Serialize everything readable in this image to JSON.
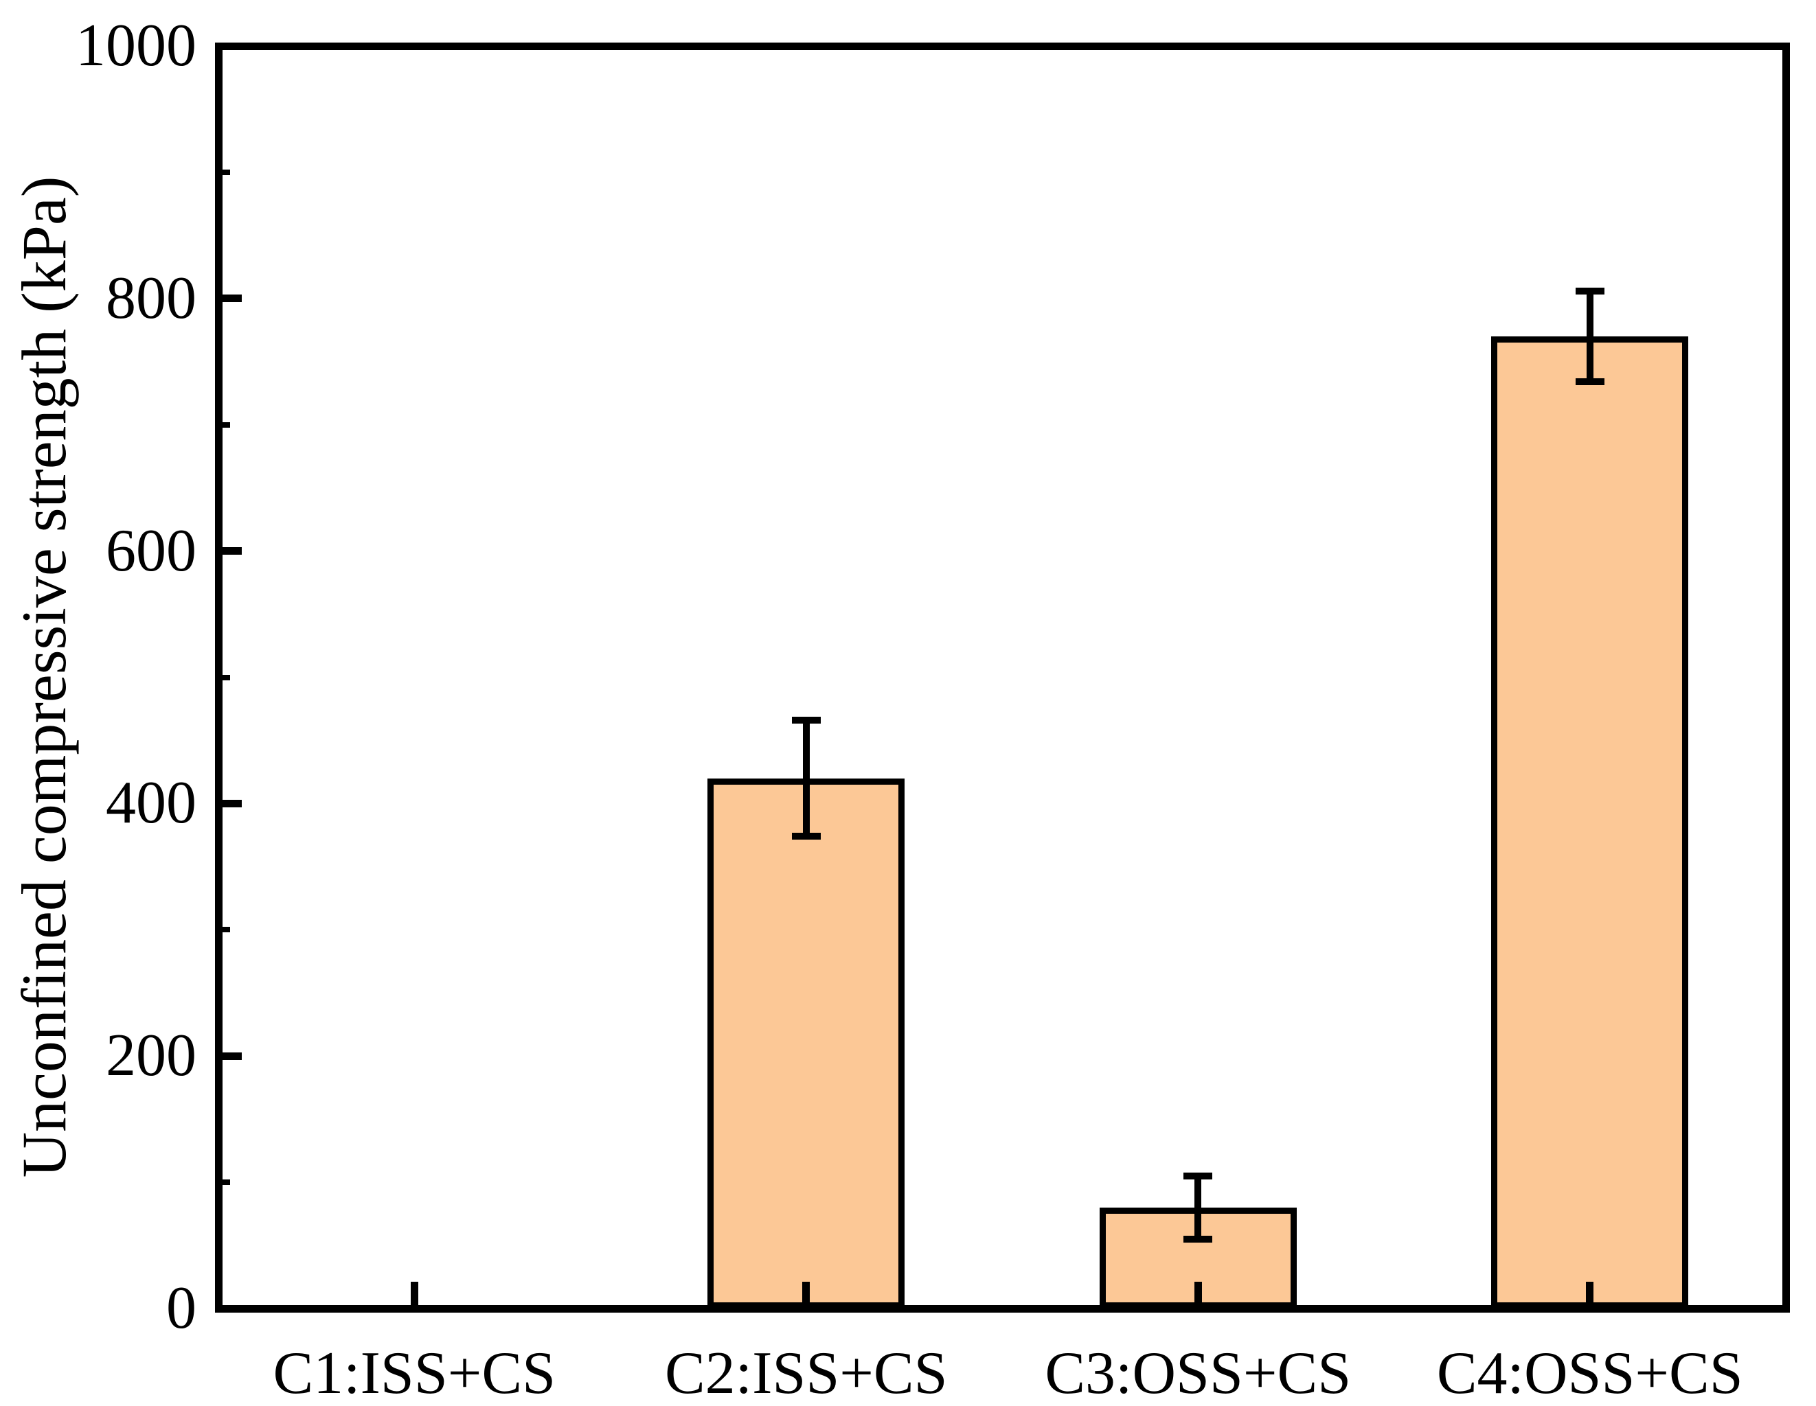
{
  "figure": {
    "background": "#FFFFFF",
    "axis_color": "#000000",
    "text_color": "#000000"
  },
  "chart_data": {
    "type": "bar",
    "title": "",
    "xlabel": "",
    "ylabel": "Unconfined compressive strength (kPa)",
    "categories": [
      "C1:ISS+CS",
      "C2:ISS+CS",
      "C3:OSS+CS",
      "C4:OSS+CS"
    ],
    "values": [
      0,
      420,
      80,
      770
    ],
    "errors": [
      0,
      46,
      25,
      36
    ],
    "ylim": [
      0,
      1000
    ],
    "y_major_ticks": [
      0,
      200,
      400,
      600,
      800,
      1000
    ],
    "y_minor_ticks": [
      100,
      300,
      500,
      700,
      900
    ],
    "grid": false,
    "legend": false,
    "bar_fill": "#FCC896",
    "bar_edge": "#000000",
    "error_bar_color": "#000000"
  }
}
